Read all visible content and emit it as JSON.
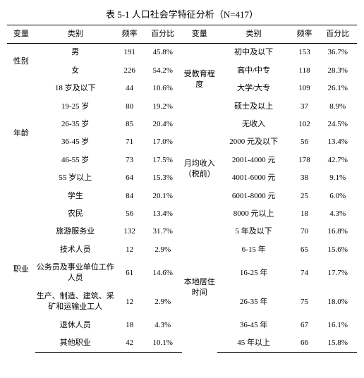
{
  "title": "表 5-1 人口社会学特征分析（N=417）",
  "headers": {
    "var": "变量",
    "cat": "类别",
    "freq": "频率",
    "pct": "百分比",
    "var2": "变量",
    "cat2": "类别",
    "freq2": "频率",
    "pct2": "百分比"
  },
  "groups_left": {
    "gender": "性别",
    "age": "年龄",
    "occupation": "职业"
  },
  "groups_right": {
    "education": "受教育程度",
    "income": "月均收入（税前）",
    "residence": "本地居住时间"
  },
  "rows": [
    {
      "cat": "男",
      "freq": "191",
      "pct": "45.8%",
      "cat2": "初中及以下",
      "freq2": "153",
      "pct2": "36.7%"
    },
    {
      "cat": "女",
      "freq": "226",
      "pct": "54.2%",
      "cat2": "高中/中专",
      "freq2": "118",
      "pct2": "28.3%"
    },
    {
      "cat": "18 岁及以下",
      "freq": "44",
      "pct": "10.6%",
      "cat2": "大学/大专",
      "freq2": "109",
      "pct2": "26.1%"
    },
    {
      "cat": "19-25 岁",
      "freq": "80",
      "pct": "19.2%",
      "cat2": "硕士及以上",
      "freq2": "37",
      "pct2": "8.9%"
    },
    {
      "cat": "26-35 岁",
      "freq": "85",
      "pct": "20.4%",
      "cat2": "无收入",
      "freq2": "102",
      "pct2": "24.5%"
    },
    {
      "cat": "36-45 岁",
      "freq": "71",
      "pct": "17.0%",
      "cat2": "2000 元及以下",
      "freq2": "56",
      "pct2": "13.4%"
    },
    {
      "cat": "46-55 岁",
      "freq": "73",
      "pct": "17.5%",
      "cat2": "2001-4000 元",
      "freq2": "178",
      "pct2": "42.7%"
    },
    {
      "cat": "55 岁以上",
      "freq": "64",
      "pct": "15.3%",
      "cat2": "4001-6000 元",
      "freq2": "38",
      "pct2": "9.1%"
    },
    {
      "cat": "学生",
      "freq": "84",
      "pct": "20.1%",
      "cat2": "6001-8000 元",
      "freq2": "25",
      "pct2": "6.0%"
    },
    {
      "cat": "农民",
      "freq": "56",
      "pct": "13.4%",
      "cat2": "8000 元以上",
      "freq2": "18",
      "pct2": "4.3%"
    },
    {
      "cat": "旅游服务业",
      "freq": "132",
      "pct": "31.7%",
      "cat2": "5 年及以下",
      "freq2": "70",
      "pct2": "16.8%"
    },
    {
      "cat": "技术人员",
      "freq": "12",
      "pct": "2.9%",
      "cat2": "6-15 年",
      "freq2": "65",
      "pct2": "15.6%"
    },
    {
      "cat": "公务员及事业单位工作人员",
      "freq": "61",
      "pct": "14.6%",
      "cat2": "16-25 年",
      "freq2": "74",
      "pct2": "17.7%"
    },
    {
      "cat": "生产、制造、建筑、采矿和运输业工人",
      "freq": "12",
      "pct": "2.9%",
      "cat2": "26-35 年",
      "freq2": "75",
      "pct2": "18.0%"
    },
    {
      "cat": "退休人员",
      "freq": "18",
      "pct": "4.3%",
      "cat2": "36-45 年",
      "freq2": "67",
      "pct2": "16.1%"
    },
    {
      "cat": "其他职业",
      "freq": "42",
      "pct": "10.1%",
      "cat2": "45 年以上",
      "freq2": "66",
      "pct2": "15.8%"
    }
  ]
}
